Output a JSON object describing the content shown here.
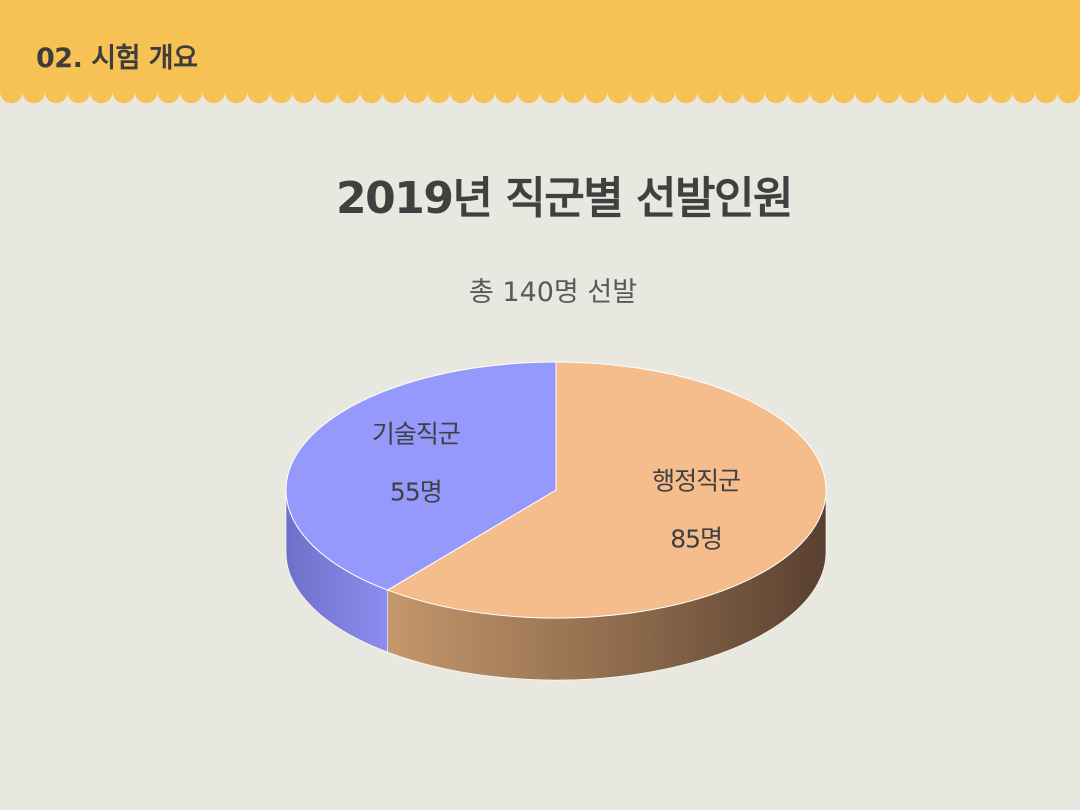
{
  "header": {
    "section_title": "02. 시험 개요",
    "band_color": "#f7c254"
  },
  "chart_data": {
    "type": "pie",
    "style": "3d",
    "title": "2019년 직군별 선발인원",
    "subtitle": "총 140명 선발",
    "slices": [
      {
        "label": "행정직군",
        "value": 85,
        "value_label": "85명",
        "color": "#f5bc8c"
      },
      {
        "label": "기술직군",
        "value": 55,
        "value_label": "55명",
        "color": "#9699fc"
      }
    ],
    "total": 140
  }
}
